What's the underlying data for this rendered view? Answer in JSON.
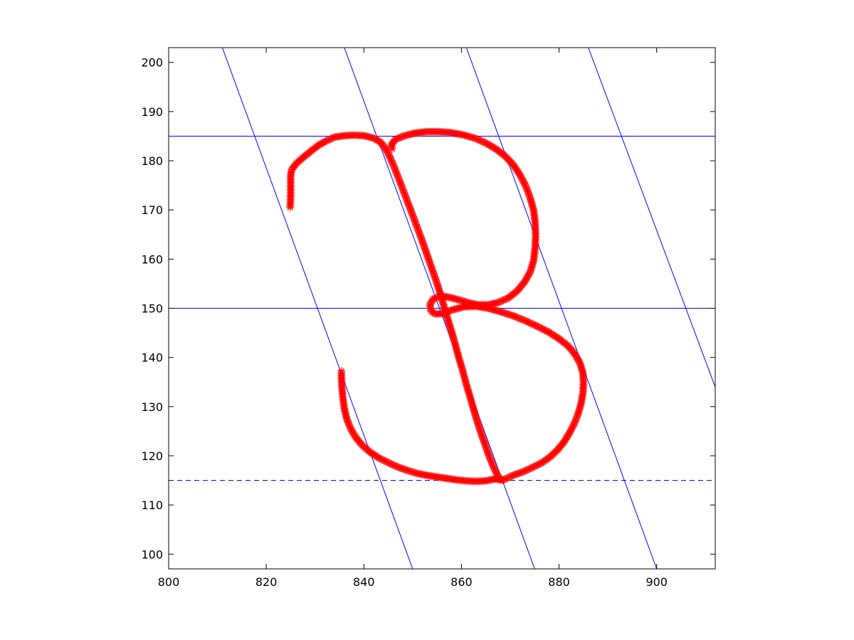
{
  "chart_data": {
    "type": "scatter",
    "title": "",
    "xlabel": "",
    "ylabel": "",
    "xlim": [
      800,
      912
    ],
    "ylim": [
      203,
      97
    ],
    "y_reversed": true,
    "grid": false,
    "legend": "none",
    "xticks": [
      800,
      820,
      840,
      860,
      880,
      900
    ],
    "yticks": [
      100,
      110,
      120,
      130,
      140,
      150,
      160,
      170,
      180,
      190,
      200
    ],
    "colors": {
      "stroke": "#ff0000",
      "guides": "#0000ff",
      "axes": "#000000"
    },
    "marker": "asterisk",
    "guide_lines": {
      "horizontal_solid": [
        150,
        185
      ],
      "horizontal_dashed": [
        115
      ],
      "slanted": [
        {
          "from": [
            811,
            203
          ],
          "to": [
            850,
            97
          ]
        },
        {
          "from": [
            836,
            203
          ],
          "to": [
            875,
            97
          ]
        },
        {
          "from": [
            861,
            203
          ],
          "to": [
            900,
            97
          ]
        },
        {
          "from": [
            886,
            203
          ],
          "to": [
            912,
            134
          ]
        }
      ]
    },
    "series": [
      {
        "values": [
          [
            824.9,
            170.5
          ],
          [
            825,
            173
          ],
          [
            825,
            175
          ],
          [
            825,
            177
          ],
          [
            825.2,
            178.2
          ],
          [
            826.2,
            179.5
          ],
          [
            827.6,
            180.7
          ],
          [
            829.2,
            182
          ],
          [
            830.8,
            183.2
          ],
          [
            832.4,
            184.1
          ],
          [
            834,
            184.8
          ],
          [
            836,
            185.1
          ],
          [
            838,
            185.2
          ],
          [
            840,
            185.1
          ],
          [
            842,
            184.6
          ],
          [
            843.4,
            183.8
          ],
          [
            844.5,
            182.4
          ],
          [
            845.4,
            180.6
          ],
          [
            846.3,
            178.5
          ],
          [
            847.2,
            176.2
          ],
          [
            848.1,
            173.9
          ],
          [
            849,
            171.5
          ],
          [
            849.9,
            169.2
          ],
          [
            850.8,
            166.8
          ],
          [
            851.7,
            164.4
          ],
          [
            852.6,
            161.9
          ],
          [
            853.5,
            159.3
          ],
          [
            854.5,
            156.5
          ],
          [
            855.4,
            153.8
          ],
          [
            856.1,
            151.5
          ],
          [
            856.8,
            149.1
          ],
          [
            857.6,
            146.5
          ],
          [
            858.5,
            143.5
          ],
          [
            859.3,
            140.5
          ],
          [
            860.2,
            137.5
          ],
          [
            861,
            134.5
          ],
          [
            861.9,
            131.5
          ],
          [
            862.7,
            128.7
          ],
          [
            863.6,
            125.8
          ],
          [
            864.6,
            122.9
          ],
          [
            865.6,
            120.1
          ],
          [
            866.6,
            117.6
          ],
          [
            867.6,
            115.6
          ],
          [
            868.4,
            115
          ],
          [
            867,
            115.3
          ],
          [
            865,
            114.9
          ],
          [
            863,
            114.8
          ],
          [
            861,
            114.9
          ],
          [
            859,
            115.1
          ],
          [
            857,
            115.4
          ],
          [
            855,
            115.7
          ],
          [
            853,
            116
          ],
          [
            851,
            116.4
          ],
          [
            849,
            117
          ],
          [
            847,
            117.7
          ],
          [
            845,
            118.6
          ],
          [
            843,
            119.6
          ],
          [
            841.2,
            120.8
          ],
          [
            839.6,
            122.2
          ],
          [
            838.3,
            123.8
          ],
          [
            837.3,
            125.5
          ],
          [
            836.5,
            127.5
          ],
          [
            836,
            129.6
          ],
          [
            835.7,
            131.8
          ],
          [
            835.5,
            134
          ],
          [
            835.4,
            136
          ],
          [
            835.4,
            137.3
          ],
          [
            868.4,
            115
          ],
          [
            870.5,
            116
          ],
          [
            872.5,
            116.7
          ],
          [
            874.5,
            117.6
          ],
          [
            876.5,
            118.6
          ],
          [
            878.2,
            119.8
          ],
          [
            879.7,
            121.2
          ],
          [
            881,
            122.8
          ],
          [
            882.1,
            124.6
          ],
          [
            883.1,
            126.5
          ],
          [
            883.9,
            128.5
          ],
          [
            884.5,
            130.6
          ],
          [
            884.9,
            132.8
          ],
          [
            885,
            134.8
          ],
          [
            884.9,
            136.8
          ],
          [
            884.3,
            138.8
          ],
          [
            883.3,
            140.6
          ],
          [
            881.9,
            142.3
          ],
          [
            880,
            143.8
          ],
          [
            877.8,
            145.2
          ],
          [
            875.4,
            146.4
          ],
          [
            873,
            147.5
          ],
          [
            870.5,
            148.5
          ],
          [
            868,
            149.3
          ],
          [
            865.5,
            150
          ],
          [
            863,
            150.4
          ],
          [
            860.5,
            150.3
          ],
          [
            858.2,
            149.7
          ],
          [
            856.3,
            149
          ],
          [
            854.8,
            148.8
          ],
          [
            853.8,
            149.4
          ],
          [
            853.5,
            150.6
          ],
          [
            854.2,
            151.9
          ],
          [
            855.8,
            152.5
          ],
          [
            857.6,
            152.2
          ],
          [
            859.5,
            151.7
          ],
          [
            861.5,
            151.1
          ],
          [
            863.5,
            150.7
          ],
          [
            865.5,
            150.7
          ],
          [
            867.6,
            151.2
          ],
          [
            869.6,
            152.1
          ],
          [
            871.4,
            153.5
          ],
          [
            872.9,
            155.3
          ],
          [
            874.1,
            157.4
          ],
          [
            874.8,
            159.8
          ],
          [
            875.1,
            162.4
          ],
          [
            875.2,
            164.9
          ],
          [
            875.1,
            167.4
          ],
          [
            874.8,
            169.9
          ],
          [
            874.1,
            172.4
          ],
          [
            873.2,
            174.8
          ],
          [
            872,
            177.1
          ],
          [
            870.6,
            179.2
          ],
          [
            869,
            180.9
          ],
          [
            867.2,
            182.3
          ],
          [
            865.2,
            183.5
          ],
          [
            863,
            184.5
          ],
          [
            860.6,
            185.2
          ],
          [
            858,
            185.7
          ],
          [
            855.4,
            185.9
          ],
          [
            852.8,
            185.9
          ],
          [
            850.3,
            185.6
          ],
          [
            848.1,
            185
          ],
          [
            846.4,
            184.3
          ],
          [
            845.6,
            183.2
          ],
          [
            845.8,
            182.4
          ]
        ]
      }
    ]
  }
}
